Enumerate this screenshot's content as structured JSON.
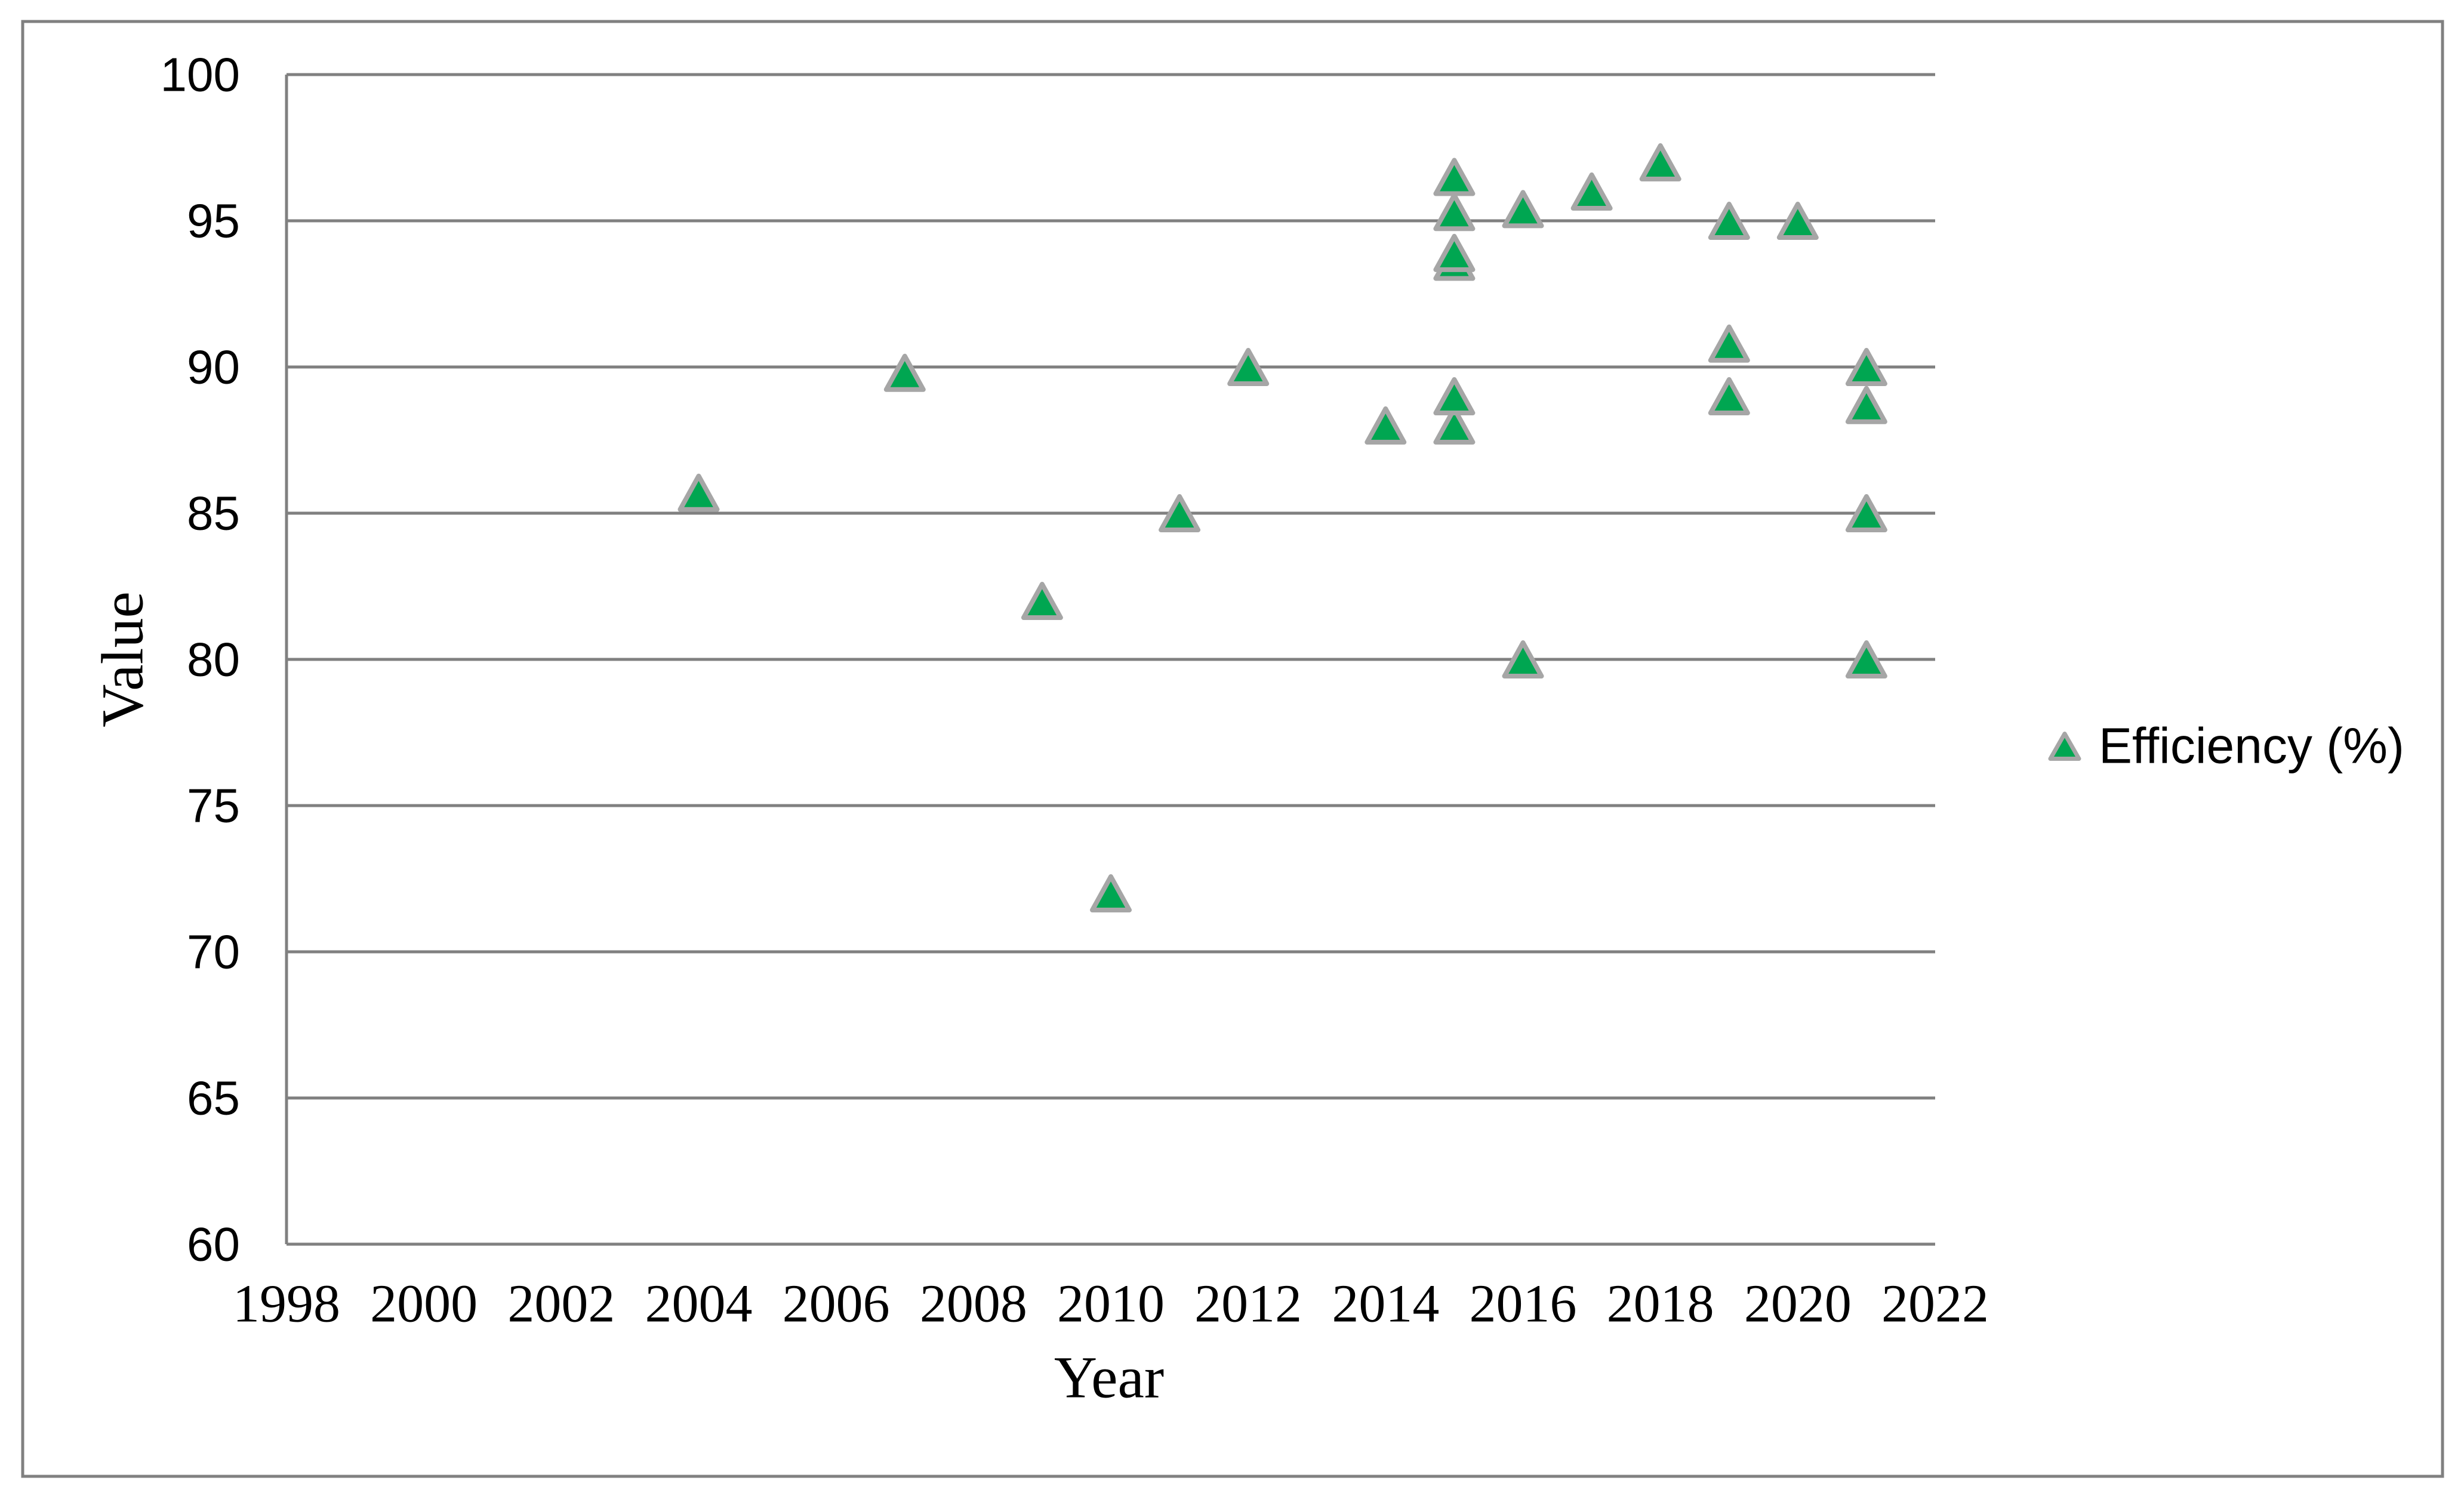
{
  "chart_data": {
    "type": "scatter",
    "title": "",
    "xlabel": "Year",
    "ylabel": "Value",
    "xlim": [
      1998,
      2022
    ],
    "ylim": [
      60,
      100
    ],
    "xticks": [
      1998,
      2000,
      2002,
      2004,
      2006,
      2008,
      2010,
      2012,
      2014,
      2016,
      2018,
      2020,
      2022
    ],
    "yticks": [
      60,
      65,
      70,
      75,
      80,
      85,
      90,
      95,
      100
    ],
    "grid": "horizontal-gridlines-on",
    "legend_position": "right-middle",
    "series": [
      {
        "name": "Efficiency (%)",
        "marker": "triangle-up",
        "points": [
          {
            "x": 2004,
            "y": 85.7
          },
          {
            "x": 2007,
            "y": 89.8
          },
          {
            "x": 2009,
            "y": 82
          },
          {
            "x": 2010,
            "y": 72
          },
          {
            "x": 2011,
            "y": 85
          },
          {
            "x": 2012,
            "y": 90
          },
          {
            "x": 2014,
            "y": 88
          },
          {
            "x": 2015,
            "y": 96.5
          },
          {
            "x": 2015,
            "y": 95.3
          },
          {
            "x": 2015,
            "y": 93.9
          },
          {
            "x": 2015,
            "y": 93.6
          },
          {
            "x": 2015,
            "y": 89
          },
          {
            "x": 2015,
            "y": 88
          },
          {
            "x": 2016,
            "y": 95.4
          },
          {
            "x": 2016,
            "y": 80
          },
          {
            "x": 2017,
            "y": 96
          },
          {
            "x": 2018,
            "y": 97
          },
          {
            "x": 2019,
            "y": 95
          },
          {
            "x": 2019,
            "y": 90.8
          },
          {
            "x": 2019,
            "y": 89
          },
          {
            "x": 2020,
            "y": 95
          },
          {
            "x": 2021,
            "y": 90
          },
          {
            "x": 2021,
            "y": 88.7
          },
          {
            "x": 2021,
            "y": 85
          },
          {
            "x": 2021,
            "y": 80
          }
        ]
      }
    ]
  },
  "axes": {
    "x_title": "Year",
    "y_title": "Value"
  },
  "legend": {
    "label": "Efficiency (%)"
  },
  "colors": {
    "marker_fill": "#00a651",
    "marker_stroke": "#a6a6a6",
    "gridline": "#808080",
    "axis_line": "#808080",
    "chart_border": "#808080",
    "text": "#000000",
    "background": "#ffffff"
  }
}
